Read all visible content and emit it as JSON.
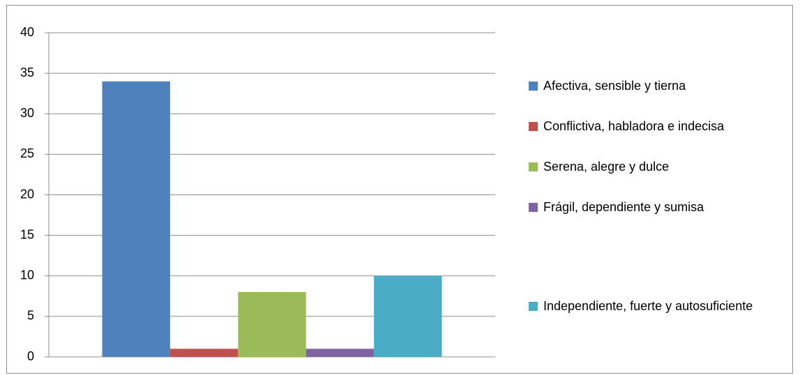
{
  "chart_data": {
    "type": "bar",
    "categories": [
      null
    ],
    "series": [
      {
        "name": "Afectiva, sensible y tierna",
        "color": "#4f81bd",
        "values": [
          34
        ]
      },
      {
        "name": "Conflictiva, habladora e indecisa",
        "color": "#c0504d",
        "values": [
          1
        ]
      },
      {
        "name": "Serena, alegre y dulce",
        "color": "#9bbb59",
        "values": [
          8
        ]
      },
      {
        "name": "Frágil, dependiente y sumisa",
        "color": "#8064a2",
        "values": [
          1
        ]
      },
      {
        "name": "Independiente, fuerte y autosuficiente",
        "color": "#4bacc6",
        "values": [
          10
        ]
      }
    ],
    "ylim": [
      0,
      40
    ],
    "yticks": [
      0,
      5,
      10,
      15,
      20,
      25,
      30,
      35,
      40
    ],
    "grid": true,
    "legend": "right"
  }
}
